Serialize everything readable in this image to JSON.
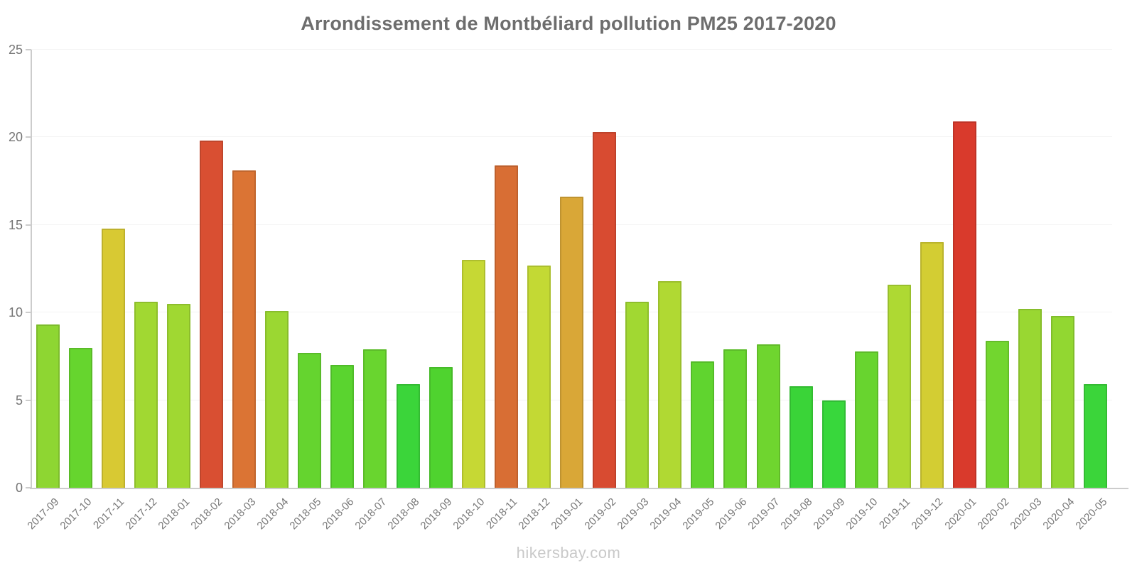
{
  "title": "Arrondissement de Montbéliard pollution PM25 2017-2020",
  "footer": "hikersbay.com",
  "colors": {
    "axis": "#cccccc",
    "grid": "#f3f3f3",
    "title_text": "#6d6d6d",
    "tick_text": "#757575",
    "footer_text": "#c9c9c9"
  },
  "chart_data": {
    "type": "bar",
    "title": "Arrondissement de Montbéliard pollution PM25 2017-2020",
    "xlabel": "",
    "ylabel": "",
    "ylim": [
      0,
      25
    ],
    "yticks": [
      0,
      5,
      10,
      15,
      20,
      25
    ],
    "grid": "horizontal",
    "legend": "none",
    "categories": [
      "2017-09",
      "2017-10",
      "2017-11",
      "2017-12",
      "2018-01",
      "2018-02",
      "2018-03",
      "2018-04",
      "2018-05",
      "2018-06",
      "2018-07",
      "2018-08",
      "2018-09",
      "2018-10",
      "2018-11",
      "2018-12",
      "2019-01",
      "2019-02",
      "2019-03",
      "2019-04",
      "2019-05",
      "2019-06",
      "2019-07",
      "2019-08",
      "2019-09",
      "2019-10",
      "2019-11",
      "2019-12",
      "2020-01",
      "2020-02",
      "2020-03",
      "2020-04",
      "2020-05"
    ],
    "values": [
      9.3,
      8.0,
      14.8,
      10.6,
      10.5,
      19.8,
      18.1,
      10.1,
      7.7,
      7.0,
      7.9,
      5.9,
      6.9,
      13.0,
      18.4,
      12.7,
      16.6,
      20.3,
      10.6,
      11.8,
      7.2,
      7.9,
      8.2,
      5.8,
      5.0,
      7.8,
      11.6,
      14.0,
      20.9,
      8.4,
      10.2,
      9.8,
      5.9
    ],
    "bar_colors": [
      "#8ed632",
      "#66d52e",
      "#d8c933",
      "#a1d832",
      "#a0d832",
      "#d94f32",
      "#db7434",
      "#9bd732",
      "#65d42f",
      "#5ad42f",
      "#69d52f",
      "#3bd53a",
      "#4fd32f",
      "#c6d834",
      "#d86e34",
      "#c3d934",
      "#d9a737",
      "#d84b31",
      "#a1d832",
      "#b0d933",
      "#60d42f",
      "#69d52f",
      "#6fd52f",
      "#3ad438",
      "#38d73c",
      "#68d42f",
      "#aed933",
      "#d3cd33",
      "#d93a2c",
      "#72d62f",
      "#99d732",
      "#92d731",
      "#3bd53a"
    ]
  }
}
